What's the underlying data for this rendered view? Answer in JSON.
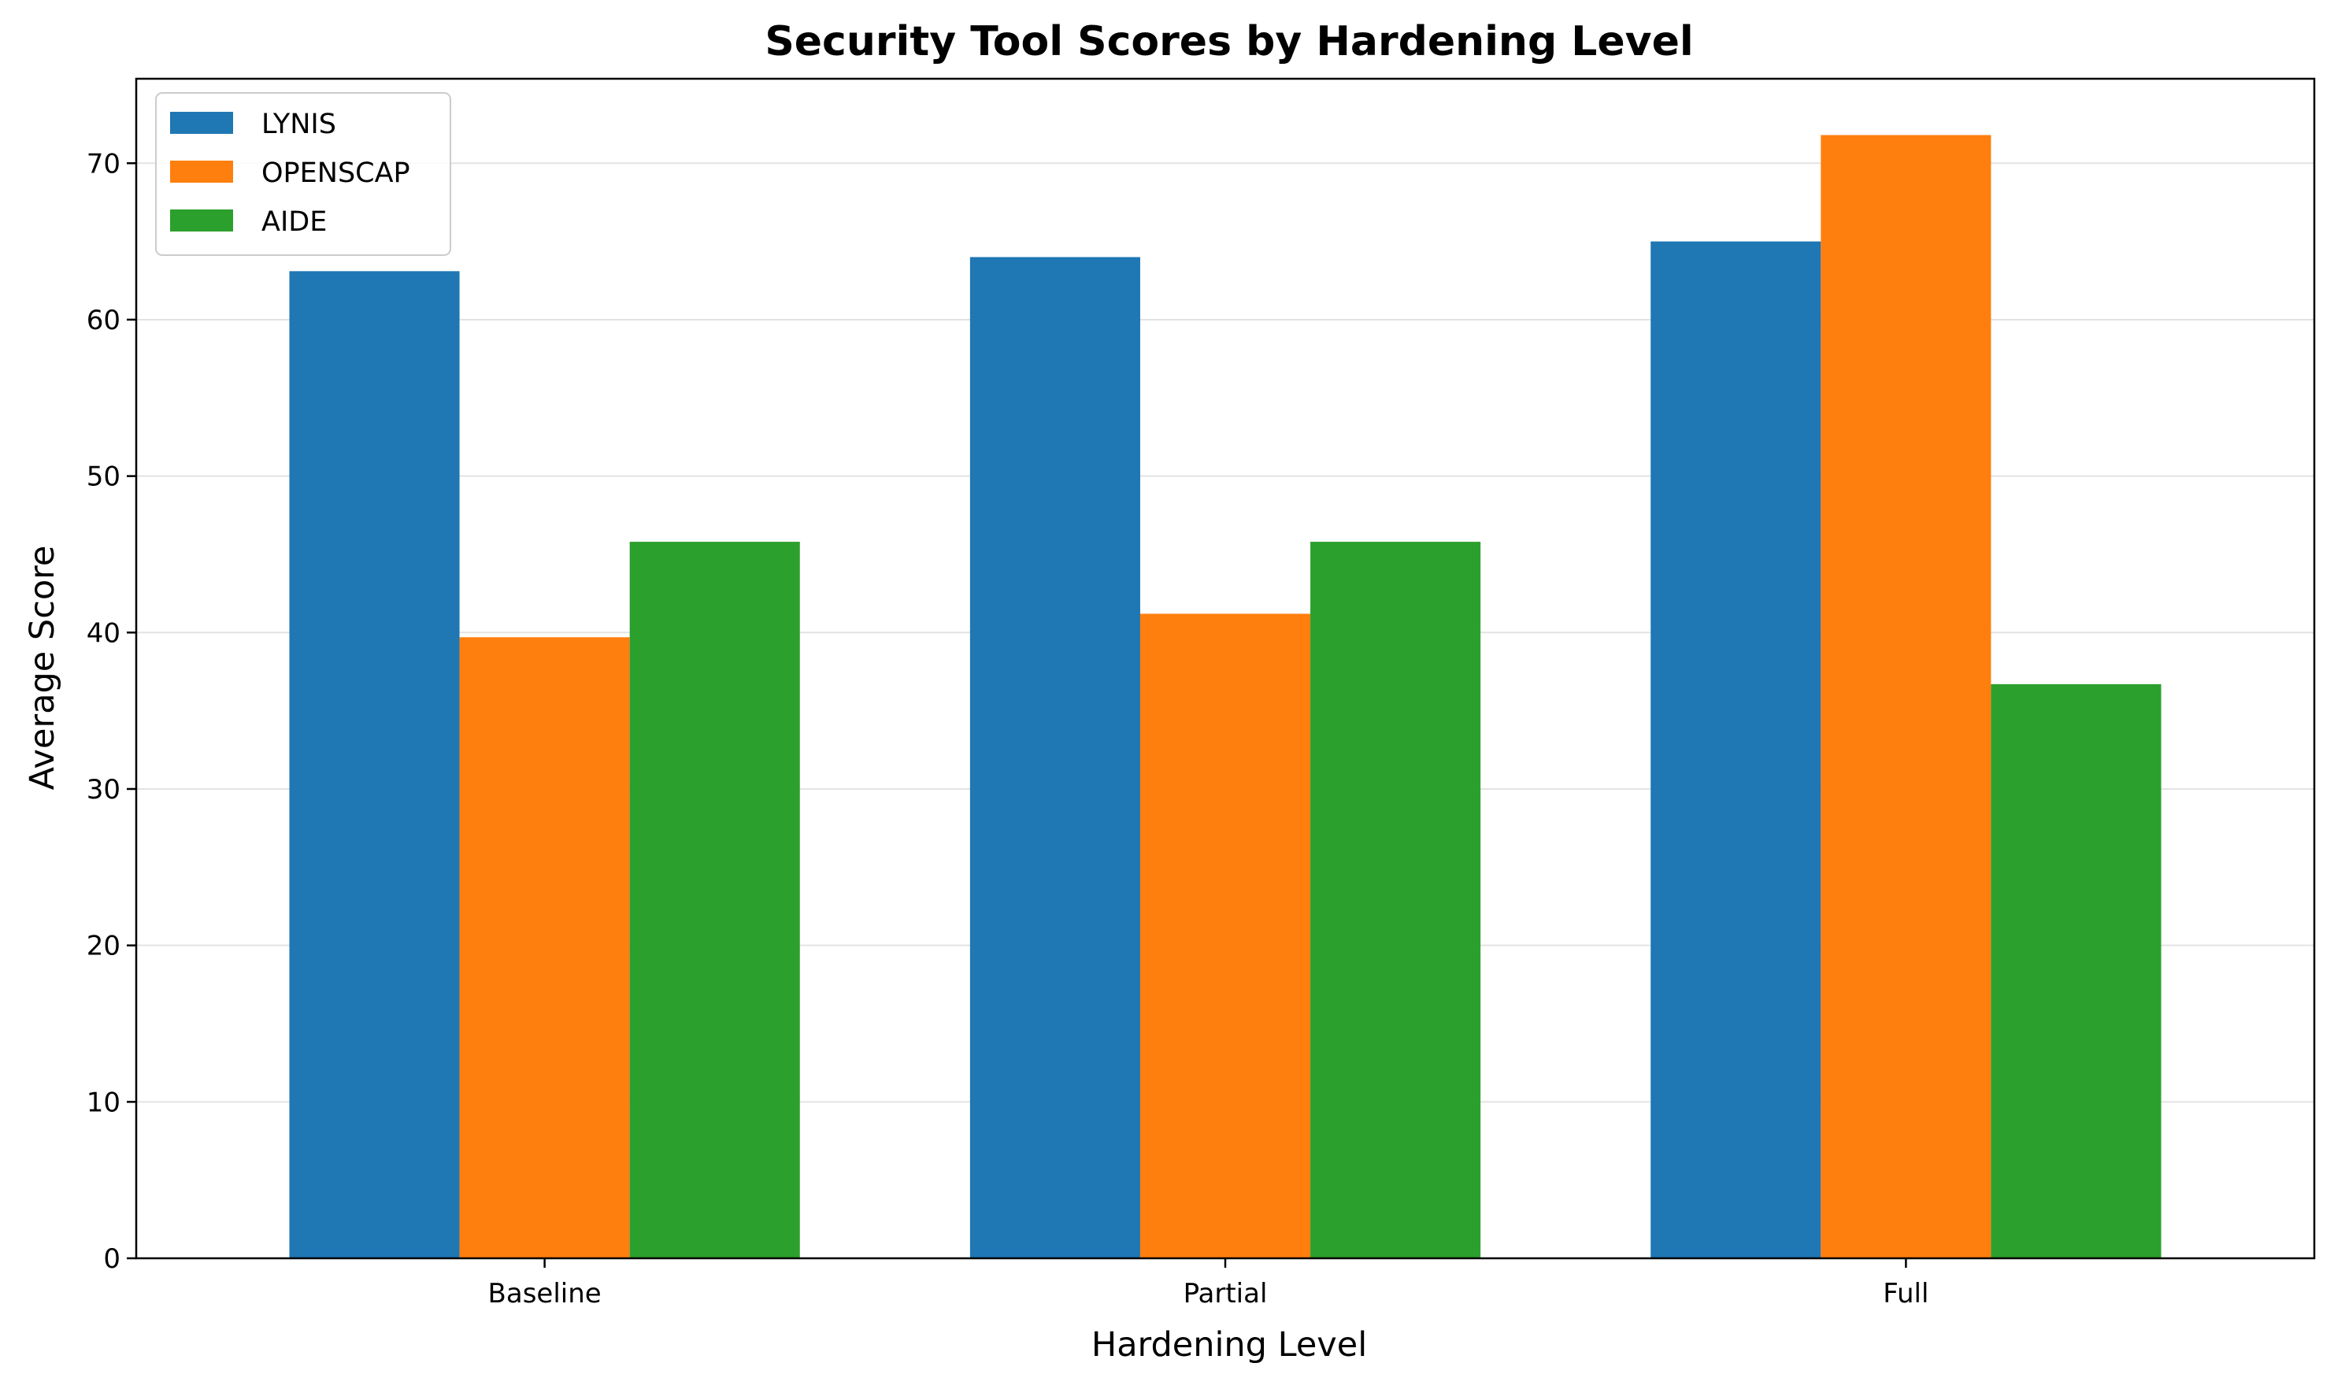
{
  "chart_data": {
    "type": "bar",
    "title": "Security Tool Scores by Hardening Level",
    "xlabel": "Hardening Level",
    "ylabel": "Average Score",
    "categories": [
      "Baseline",
      "Partial",
      "Full"
    ],
    "series": [
      {
        "name": "LYNIS",
        "color": "#1f77b4",
        "values": [
          63.1,
          64.0,
          65.0
        ]
      },
      {
        "name": "OPENSCAP",
        "color": "#ff7f0e",
        "values": [
          39.7,
          41.2,
          71.8
        ]
      },
      {
        "name": "AIDE",
        "color": "#2ca02c",
        "values": [
          45.8,
          45.8,
          36.7
        ]
      }
    ],
    "ylim": [
      0,
      75.4
    ],
    "yticks": [
      0,
      10,
      20,
      30,
      40,
      50,
      60,
      70
    ],
    "grid": "y",
    "legend_position": "top-left"
  }
}
